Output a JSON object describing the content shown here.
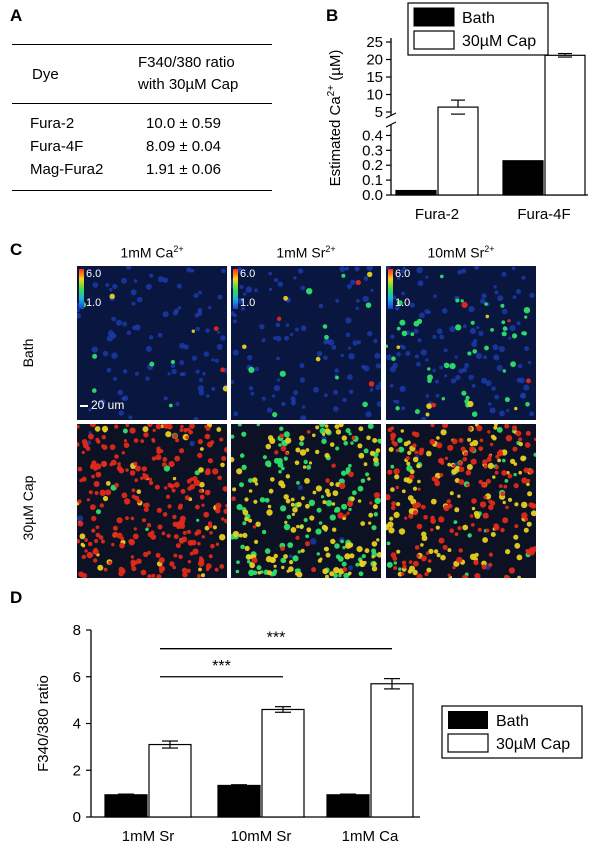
{
  "panelA": {
    "letter": "A",
    "header_dye": "Dye",
    "header_ratio_line1": "F340/380 ratio",
    "header_ratio_line2": "with 30µM Cap",
    "rows": [
      {
        "dye": "Fura-2",
        "value": "10.0 ± 0.59"
      },
      {
        "dye": "Fura-4F",
        "value": "8.09 ± 0.04"
      },
      {
        "dye": "Mag-Fura2",
        "value": "1.91 ± 0.06"
      }
    ]
  },
  "panelB": {
    "letter": "B",
    "ylabel_prefix": "Estimated Ca",
    "ylabel_sup": "2+",
    "ylabel_suffix": " (µM)",
    "legend": [
      "Bath",
      "30µM Cap"
    ]
  },
  "panelC": {
    "letter": "C",
    "col_titles": [
      {
        "base": "1mM Ca",
        "sup": "2+"
      },
      {
        "base": "1mM Sr",
        "sup": "2+"
      },
      {
        "base": "10mM Sr",
        "sup": "2+"
      }
    ],
    "row_labels": [
      "Bath",
      "30µM Cap"
    ],
    "colorbar_high": "6.0",
    "colorbar_low": "1.0",
    "scale_bar": "20 um"
  },
  "panelD": {
    "letter": "D",
    "ylabel": "F340/380 ratio",
    "legend": [
      "Bath",
      "30µM Cap"
    ],
    "sig_labels": [
      "***",
      "***"
    ]
  },
  "chart_data": [
    {
      "type": "bar",
      "panel": "B",
      "categories": [
        "Fura-2",
        "Fura-4F"
      ],
      "series": [
        {
          "name": "Bath",
          "values": [
            0.03,
            0.23
          ],
          "errors": [
            0,
            0
          ],
          "color": "#000000"
        },
        {
          "name": "30µM Cap",
          "values": [
            6.4,
            21.2
          ],
          "errors": [
            2.0,
            0.5
          ],
          "color": "#ffffff"
        }
      ],
      "ylabel": "Estimated Ca2+ (µM)",
      "broken_axis": true,
      "lower_ylim": [
        0,
        0.45
      ],
      "lower_yticks": [
        0.0,
        0.1,
        0.2,
        0.3,
        0.4
      ],
      "upper_ylim": [
        5,
        25
      ],
      "upper_yticks": [
        5,
        10,
        15,
        20,
        25
      ],
      "legend": "top"
    },
    {
      "type": "bar",
      "panel": "D",
      "categories": [
        "1mM Sr",
        "10mM Sr",
        "1mM Ca"
      ],
      "series": [
        {
          "name": "Bath",
          "values": [
            0.95,
            1.35,
            0.95
          ],
          "errors": [
            0.03,
            0.03,
            0.03
          ],
          "color": "#000000"
        },
        {
          "name": "30µM Cap",
          "values": [
            3.1,
            4.6,
            5.7
          ],
          "errors": [
            0.15,
            0.12,
            0.22
          ],
          "color": "#ffffff"
        }
      ],
      "ylabel": "F340/380 ratio",
      "ylim": [
        0,
        8
      ],
      "yticks": [
        0,
        2,
        4,
        6,
        8
      ],
      "legend": "right",
      "significance": [
        {
          "from": "1mM Sr",
          "to": "10mM Sr",
          "label": "***"
        },
        {
          "from": "1mM Sr",
          "to": "1mM Ca",
          "label": "***"
        }
      ]
    }
  ],
  "colors": {
    "bath_bar": "#000000",
    "cap_bar": "#ffffff",
    "micro_background": "#0a1a3c",
    "cell_blue": "#1d3fb5",
    "cell_green": "#2ee06a",
    "cell_yellow": "#e8d020",
    "cell_red": "#e02a1a"
  }
}
